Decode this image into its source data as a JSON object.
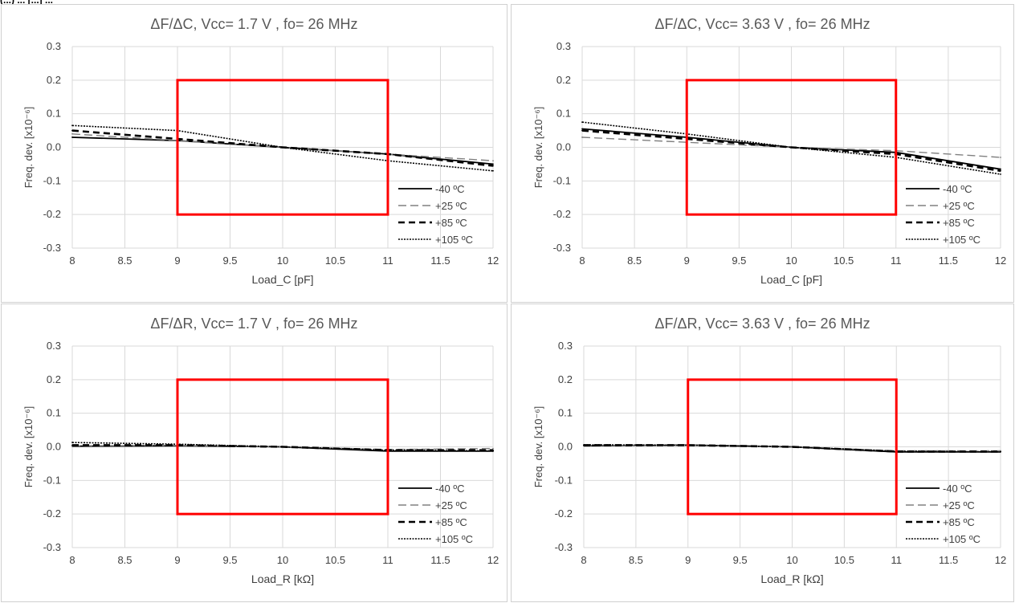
{
  "header_fragment": "(...) ... [...] ...",
  "chart_data": [
    {
      "type": "line",
      "title": "ΔF/ΔC, Vcc= 1.7 V ,  fo= 26 MHz",
      "xlabel": "Load_C [pF]",
      "ylabel": "Freq. dev. [x10⁻⁶]",
      "xlim": [
        8,
        12
      ],
      "ylim": [
        -0.3,
        0.3
      ],
      "x_ticks": [
        "8",
        "8.5",
        "9",
        "9.5",
        "10",
        "10.5",
        "11",
        "11.5",
        "12"
      ],
      "y_ticks": [
        "0.3",
        "0.2",
        "0.1",
        "0.0",
        "-0.1",
        "-0.2",
        "-0.3"
      ],
      "grid": true,
      "legend_position": "bottom-right",
      "limit_box": {
        "x": [
          9,
          11
        ],
        "y": [
          -0.2,
          0.2
        ],
        "color": "#ff0000"
      },
      "series": [
        {
          "name": "-40 ºC",
          "style": "solid",
          "color": "#000000",
          "x": [
            8,
            9,
            10,
            11,
            12
          ],
          "values": [
            0.03,
            0.02,
            0.0,
            -0.02,
            -0.05
          ]
        },
        {
          "name": "+25 ºC",
          "style": "long-dash",
          "color": "#808080",
          "x": [
            8,
            9,
            10,
            11,
            12
          ],
          "values": [
            0.04,
            0.02,
            0.0,
            -0.02,
            -0.04
          ]
        },
        {
          "name": "+85 ºC",
          "style": "dash",
          "color": "#000000",
          "x": [
            8,
            9,
            10,
            11,
            12
          ],
          "values": [
            0.05,
            0.025,
            0.0,
            -0.02,
            -0.055
          ]
        },
        {
          "name": "+105 ºC",
          "style": "dot",
          "color": "#000000",
          "x": [
            8,
            9,
            10,
            11,
            12
          ],
          "values": [
            0.065,
            0.05,
            0.0,
            -0.04,
            -0.07
          ]
        }
      ]
    },
    {
      "type": "line",
      "title": "ΔF/ΔC, Vcc= 3.63 V ,  fo= 26 MHz",
      "xlabel": "Load_C [pF]",
      "ylabel": "Freq. dev. [x10⁻⁶]",
      "xlim": [
        8,
        12
      ],
      "ylim": [
        -0.3,
        0.3
      ],
      "x_ticks": [
        "8",
        "8.5",
        "9",
        "9.5",
        "10",
        "10.5",
        "11",
        "11.5",
        "12"
      ],
      "y_ticks": [
        "0.3",
        "0.2",
        "0.1",
        "0.0",
        "-0.1",
        "-0.2",
        "-0.3"
      ],
      "grid": true,
      "legend_position": "bottom-right",
      "limit_box": {
        "x": [
          9,
          11
        ],
        "y": [
          -0.2,
          0.2
        ],
        "color": "#ff0000"
      },
      "series": [
        {
          "name": "-40 ºC",
          "style": "solid",
          "color": "#000000",
          "x": [
            8,
            9,
            10,
            11,
            12
          ],
          "values": [
            0.055,
            0.03,
            0.0,
            -0.015,
            -0.065
          ]
        },
        {
          "name": "+25 ºC",
          "style": "long-dash",
          "color": "#808080",
          "x": [
            8,
            9,
            10,
            11,
            12
          ],
          "values": [
            0.03,
            0.015,
            0.0,
            -0.01,
            -0.03
          ]
        },
        {
          "name": "+85 ºC",
          "style": "dash",
          "color": "#000000",
          "x": [
            8,
            9,
            10,
            11,
            12
          ],
          "values": [
            0.05,
            0.025,
            0.0,
            -0.02,
            -0.07
          ]
        },
        {
          "name": "+105 ºC",
          "style": "dot",
          "color": "#000000",
          "x": [
            8,
            9,
            10,
            11,
            12
          ],
          "values": [
            0.075,
            0.04,
            0.0,
            -0.03,
            -0.08
          ]
        }
      ]
    },
    {
      "type": "line",
      "title": "ΔF/ΔR, Vcc= 1.7 V ,  fo= 26 MHz",
      "xlabel": "Load_R [kΩ]",
      "ylabel": "Freq. dev. [x10⁻⁶]",
      "xlim": [
        8,
        12
      ],
      "ylim": [
        -0.3,
        0.3
      ],
      "x_ticks": [
        "8",
        "8.5",
        "9",
        "9.5",
        "10",
        "10.5",
        "11",
        "11.5",
        "12"
      ],
      "y_ticks": [
        "0.3",
        "0.2",
        "0.1",
        "0.0",
        "-0.1",
        "-0.2",
        "-0.3"
      ],
      "grid": true,
      "legend_position": "bottom-right",
      "limit_box": {
        "x": [
          9,
          11
        ],
        "y": [
          -0.2,
          0.2
        ],
        "color": "#ff0000"
      },
      "series": [
        {
          "name": "-40 ºC",
          "style": "solid",
          "color": "#000000",
          "x": [
            8,
            9,
            10,
            11,
            12
          ],
          "values": [
            0.002,
            0.003,
            0.0,
            -0.013,
            -0.013
          ]
        },
        {
          "name": "+25 ºC",
          "style": "long-dash",
          "color": "#808080",
          "x": [
            8,
            9,
            10,
            11,
            12
          ],
          "values": [
            0.003,
            0.004,
            0.0,
            -0.008,
            -0.005
          ]
        },
        {
          "name": "+85 ºC",
          "style": "dash",
          "color": "#000000",
          "x": [
            8,
            9,
            10,
            11,
            12
          ],
          "values": [
            0.005,
            0.005,
            0.0,
            -0.01,
            -0.01
          ]
        },
        {
          "name": "+105 ºC",
          "style": "dot",
          "color": "#000000",
          "x": [
            8,
            9,
            10,
            11,
            12
          ],
          "values": [
            0.013,
            0.008,
            0.0,
            -0.01,
            -0.012
          ]
        }
      ]
    },
    {
      "type": "line",
      "title": "ΔF/ΔR, Vcc= 3.63 V ,  fo= 26 MHz",
      "xlabel": "Load_R [kΩ]",
      "ylabel": "Freq. dev. [x10⁻⁶]",
      "xlim": [
        8,
        12
      ],
      "ylim": [
        -0.3,
        0.3
      ],
      "x_ticks": [
        "8",
        "8.5",
        "9",
        "9.5",
        "10",
        "10.5",
        "11",
        "11.5",
        "12"
      ],
      "y_ticks": [
        "0.3",
        "0.2",
        "0.1",
        "0.0",
        "-0.1",
        "-0.2",
        "-0.3"
      ],
      "grid": true,
      "legend_position": "bottom-right",
      "limit_box": {
        "x": [
          9,
          11
        ],
        "y": [
          -0.2,
          0.2
        ],
        "color": "#ff0000"
      },
      "series": [
        {
          "name": "-40 ºC",
          "style": "solid",
          "color": "#000000",
          "x": [
            8,
            9,
            10,
            11,
            12
          ],
          "values": [
            0.003,
            0.005,
            0.0,
            -0.015,
            -0.015
          ]
        },
        {
          "name": "+25 ºC",
          "style": "long-dash",
          "color": "#808080",
          "x": [
            8,
            9,
            10,
            11,
            12
          ],
          "values": [
            0.004,
            0.004,
            0.0,
            -0.012,
            -0.012
          ]
        },
        {
          "name": "+85 ºC",
          "style": "dash",
          "color": "#000000",
          "x": [
            8,
            9,
            10,
            11,
            12
          ],
          "values": [
            0.005,
            0.005,
            0.0,
            -0.014,
            -0.014
          ]
        },
        {
          "name": "+105 ºC",
          "style": "dot",
          "color": "#000000",
          "x": [
            8,
            9,
            10,
            11,
            12
          ],
          "values": [
            0.006,
            0.005,
            0.0,
            -0.013,
            -0.015
          ]
        }
      ]
    }
  ]
}
